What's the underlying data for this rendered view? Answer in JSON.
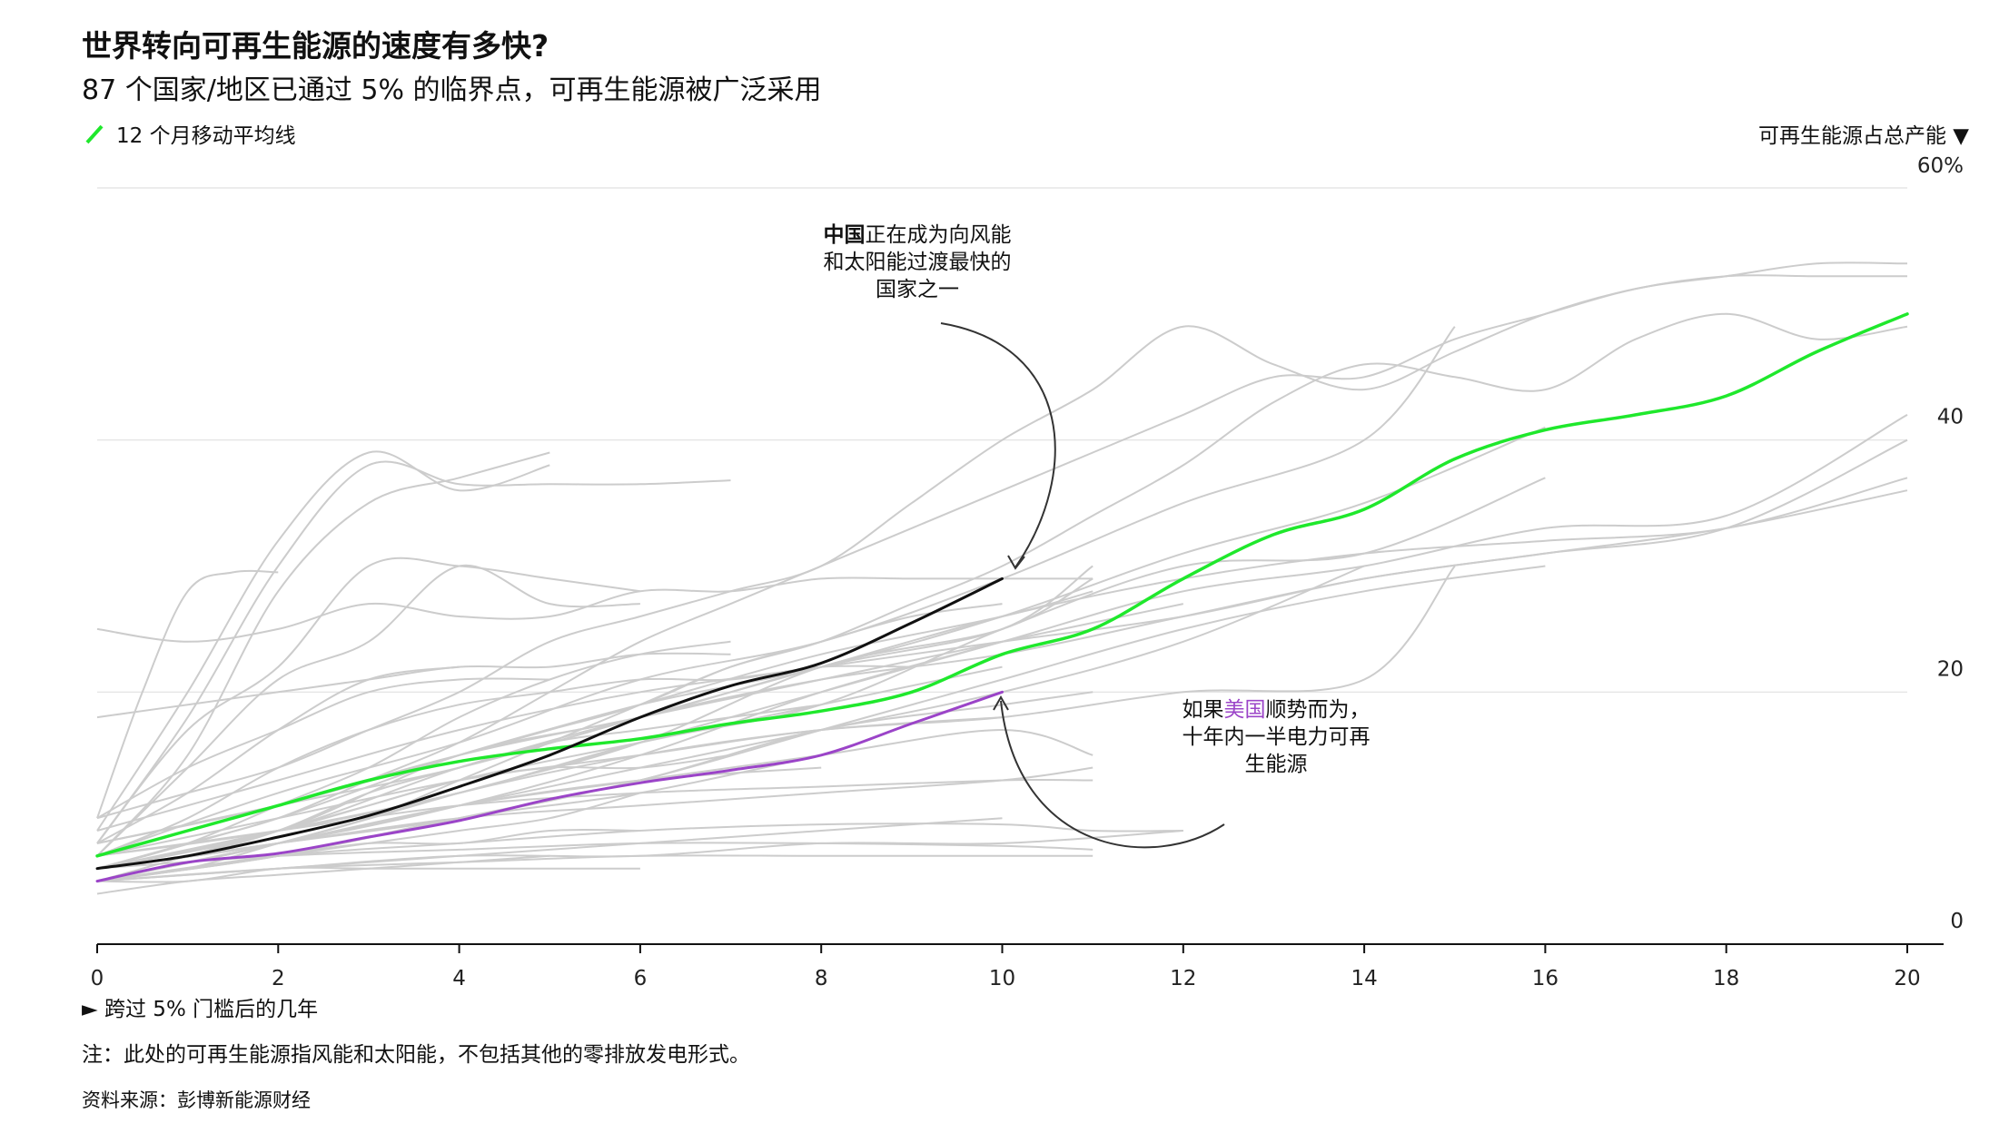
{
  "header": {
    "title": "世界转向可再生能源的速度有多快?",
    "subtitle": "87 个国家/地区已通过 5% 的临界点，可再生能源被广泛采用"
  },
  "legend": {
    "label": "12 个月移动平均线"
  },
  "footer": {
    "x_axis_label": "► 跨过 5% 门槛后的几年",
    "note": "注：此处的可再生能源指风能和太阳能，不包括其他的零排放发电形式。",
    "source": "资料来源：彭博新能源财经"
  },
  "annotations": {
    "china": {
      "bold": "中国",
      "line1_rest": "正在成为向风能",
      "line2": "和太阳能过渡最快的",
      "line3": "国家之一"
    },
    "us": {
      "line1_pre": "如果",
      "line1_hl": "美国",
      "line1_post": "顺势而为，",
      "line2": "十年内一半电力可再",
      "line3": "生能源"
    }
  },
  "colors": {
    "green": "#1fe82c",
    "purple": "#9b44c8",
    "black": "#111111",
    "gray": "#cccccc",
    "grid": "#e6e6e6"
  },
  "chart_data": {
    "type": "line",
    "title": "世界转向可再生能源的速度有多快?",
    "xlabel": "跨过 5% 门槛后的几年",
    "ylabel": "可再生能源占总产能",
    "xlim": [
      0,
      20
    ],
    "ylim": [
      0,
      60
    ],
    "x_ticks": [
      "0",
      "2",
      "4",
      "6",
      "8",
      "10",
      "12",
      "14",
      "16",
      "18",
      "20"
    ],
    "y_ticks": [
      "0",
      "20",
      "40",
      "60%"
    ],
    "y_tick_values": [
      0,
      20,
      40,
      60
    ],
    "highlight_series": [
      {
        "name": "12 个月移动平均线",
        "color": "#1fe82c",
        "x": [
          0,
          1,
          2,
          3,
          4,
          5,
          6,
          7,
          8,
          9,
          10,
          11,
          12,
          13,
          14,
          15,
          16,
          17,
          18,
          19,
          20
        ],
        "y": [
          7,
          9,
          11,
          13,
          14.5,
          15.5,
          16.3,
          17.5,
          18.5,
          20,
          23,
          25,
          29,
          32.5,
          34.5,
          38.5,
          40.8,
          42,
          43.5,
          47,
          50
        ]
      },
      {
        "name": "中国",
        "color": "#111111",
        "x": [
          0,
          1,
          2,
          3,
          4,
          5,
          6,
          7,
          8,
          9,
          10
        ],
        "y": [
          6,
          7,
          8.5,
          10.2,
          12.5,
          15,
          18,
          20.5,
          22.3,
          25.5,
          29
        ]
      },
      {
        "name": "美国",
        "color": "#9b44c8",
        "x": [
          0,
          1,
          2,
          3,
          4,
          5,
          6,
          7,
          8,
          9,
          10
        ],
        "y": [
          5,
          6.5,
          7.2,
          8.5,
          9.8,
          11.5,
          12.8,
          13.8,
          15,
          17.5,
          20
        ]
      }
    ],
    "background_series": [
      {
        "x": [
          0,
          1,
          2,
          3,
          4,
          5
        ],
        "y": [
          9,
          20,
          32,
          39,
          36,
          38
        ]
      },
      {
        "x": [
          0,
          1,
          2,
          3,
          4,
          5,
          6,
          7
        ],
        "y": [
          8,
          18,
          30,
          38,
          36.5,
          36.5,
          36.5,
          36.8
        ]
      },
      {
        "x": [
          0,
          1,
          2,
          3,
          4,
          5
        ],
        "y": [
          7,
          15,
          28,
          35,
          37,
          39
        ]
      },
      {
        "x": [
          0,
          0.5,
          1,
          1.5,
          2
        ],
        "y": [
          10,
          20,
          28,
          29.5,
          29.5
        ]
      },
      {
        "x": [
          0,
          1,
          2,
          3,
          4,
          5,
          6
        ],
        "y": [
          8,
          17,
          22,
          30,
          30,
          29,
          28
        ]
      },
      {
        "x": [
          0,
          1,
          2,
          3,
          4,
          5,
          6
        ],
        "y": [
          7,
          14,
          21,
          24,
          30,
          27,
          27
        ]
      },
      {
        "x": [
          0,
          1,
          2,
          3,
          4,
          5,
          6,
          7,
          8,
          9,
          10,
          11,
          12,
          13,
          14,
          15,
          16,
          17,
          18,
          19,
          20
        ],
        "y": [
          10,
          12,
          14,
          17,
          20,
          24,
          26,
          28,
          30,
          35,
          40,
          44,
          49,
          46,
          44,
          47,
          50,
          52,
          53,
          53,
          53
        ]
      },
      {
        "x": [
          0,
          1,
          2,
          3,
          4,
          5,
          6,
          7,
          8,
          9,
          10,
          11,
          12,
          13,
          14,
          15,
          16,
          17,
          18,
          19,
          20
        ],
        "y": [
          6,
          8,
          10,
          13,
          16,
          20,
          24,
          27,
          30,
          33,
          36,
          39,
          42,
          45,
          45,
          48,
          50,
          52,
          53,
          54,
          54
        ]
      },
      {
        "x": [
          0,
          1,
          2,
          3,
          4,
          5,
          6,
          7,
          8,
          9,
          10,
          11,
          12,
          13,
          14,
          15,
          16,
          17,
          18,
          19,
          20
        ],
        "y": [
          7,
          9,
          11,
          13,
          15,
          17,
          19,
          22,
          24,
          27,
          30,
          34,
          38,
          43,
          46,
          45,
          44,
          48,
          50,
          48,
          49
        ]
      },
      {
        "x": [
          0,
          2,
          4,
          6,
          8,
          10,
          12,
          14,
          15
        ],
        "y": [
          7,
          12,
          16,
          21,
          24,
          29,
          35,
          40,
          49
        ]
      },
      {
        "x": [
          0,
          2,
          4,
          6,
          8,
          10,
          12,
          14,
          16
        ],
        "y": [
          8,
          11,
          15,
          19,
          22,
          26,
          31,
          35,
          41
        ]
      },
      {
        "x": [
          0,
          2,
          4,
          6,
          8,
          10,
          12,
          14,
          16,
          18,
          20
        ],
        "y": [
          7,
          9,
          12,
          16,
          20,
          24,
          28,
          30,
          33,
          34,
          42
        ]
      },
      {
        "x": [
          0,
          2,
          4,
          6,
          8,
          10,
          12,
          14,
          16
        ],
        "y": [
          6,
          9,
          12,
          16,
          19,
          25,
          30,
          31,
          37
        ]
      },
      {
        "x": [
          0,
          2,
          4,
          6,
          8,
          10,
          12,
          14
        ],
        "y": [
          6,
          8,
          11,
          14,
          17,
          20,
          24,
          30
        ]
      },
      {
        "x": [
          0,
          2,
          4,
          6,
          8,
          10,
          12,
          14,
          16
        ],
        "y": [
          6,
          8,
          10,
          13,
          17,
          21,
          25,
          28,
          30
        ]
      },
      {
        "x": [
          0,
          1,
          2,
          3,
          4,
          5,
          6,
          7,
          8,
          9,
          10,
          11
        ],
        "y": [
          25,
          24,
          25,
          27,
          26,
          26,
          28,
          28,
          29,
          29,
          29,
          29
        ]
      },
      {
        "x": [
          0,
          2,
          4,
          6,
          8,
          10,
          12,
          14,
          16,
          18,
          20
        ],
        "y": [
          8,
          11,
          14,
          18,
          22,
          26,
          29,
          31,
          32,
          33,
          37
        ]
      },
      {
        "x": [
          0,
          2,
          4,
          6,
          8,
          10,
          12,
          14,
          16,
          18,
          20
        ],
        "y": [
          9,
          13,
          17,
          20,
          22,
          24,
          26,
          29,
          31,
          33,
          36
        ]
      },
      {
        "x": [
          0,
          2,
          4,
          6,
          8,
          10,
          12,
          14,
          15
        ],
        "y": [
          7,
          10,
          13,
          15,
          17,
          18,
          20,
          21,
          30
        ]
      },
      {
        "x": [
          0,
          2,
          4,
          6,
          8,
          10,
          12,
          14,
          16,
          18,
          20
        ],
        "y": [
          6,
          9,
          14,
          18,
          21,
          23,
          26,
          29,
          31,
          33,
          40
        ]
      },
      {
        "x": [
          0,
          2,
          4,
          6,
          8,
          10,
          11
        ],
        "y": [
          6,
          9,
          15,
          18,
          22,
          25,
          30
        ]
      },
      {
        "x": [
          0,
          2,
          4,
          6,
          8,
          10,
          11
        ],
        "y": [
          5,
          8,
          12,
          16,
          22,
          25,
          29
        ]
      },
      {
        "x": [
          0,
          2,
          4,
          6,
          8,
          10
        ],
        "y": [
          6,
          9,
          13,
          16,
          19,
          22
        ]
      },
      {
        "x": [
          0,
          2,
          4,
          6,
          8,
          10,
          11
        ],
        "y": [
          5,
          7,
          10,
          13,
          17,
          19,
          20
        ]
      },
      {
        "x": [
          0,
          2,
          4,
          6,
          8,
          10,
          11
        ],
        "y": [
          5,
          8,
          11,
          13,
          15,
          17,
          15
        ]
      },
      {
        "x": [
          0,
          2,
          4,
          6,
          8,
          10,
          11
        ],
        "y": [
          6,
          8,
          10,
          11,
          12,
          13,
          14
        ]
      },
      {
        "x": [
          0,
          2,
          4,
          6,
          8,
          10,
          11
        ],
        "y": [
          7,
          9,
          11,
          12,
          12.5,
          13,
          13
        ]
      },
      {
        "x": [
          0,
          2,
          4,
          6,
          8,
          10,
          11,
          12
        ],
        "y": [
          5,
          7,
          8,
          9,
          9.5,
          9.5,
          9,
          9
        ]
      },
      {
        "x": [
          0,
          2,
          4,
          6,
          8,
          10,
          11
        ],
        "y": [
          6,
          7,
          7.5,
          8,
          8,
          7.8,
          7.5
        ]
      },
      {
        "x": [
          0,
          2,
          4,
          6,
          8,
          10,
          11
        ],
        "y": [
          5,
          6,
          6.5,
          7,
          7,
          7,
          7
        ]
      },
      {
        "x": [
          0,
          2,
          4,
          6,
          8,
          10,
          12
        ],
        "y": [
          5,
          6,
          7,
          7,
          8,
          8,
          9
        ]
      },
      {
        "x": [
          0,
          2,
          4,
          6,
          8
        ],
        "y": [
          6,
          8,
          11,
          13,
          14
        ]
      },
      {
        "x": [
          0,
          2,
          4,
          6,
          8,
          10
        ],
        "y": [
          5,
          8,
          12,
          15,
          17,
          18
        ]
      },
      {
        "x": [
          0,
          2,
          4,
          6,
          8,
          10,
          12
        ],
        "y": [
          7,
          11,
          15,
          18,
          21,
          24,
          27
        ]
      },
      {
        "x": [
          0,
          2,
          4,
          6,
          8,
          10
        ],
        "y": [
          5,
          6,
          7,
          8,
          9,
          10
        ]
      },
      {
        "x": [
          0,
          2,
          4,
          6,
          8,
          10,
          11
        ],
        "y": [
          6,
          10,
          15,
          19,
          23,
          26,
          28
        ]
      },
      {
        "x": [
          0,
          2,
          4,
          6,
          8
        ],
        "y": [
          5,
          7,
          10,
          12,
          15
        ]
      },
      {
        "x": [
          0,
          2,
          4,
          6,
          8,
          10
        ],
        "y": [
          6,
          8,
          11,
          15,
          20,
          24
        ]
      },
      {
        "x": [
          0,
          1,
          2,
          3,
          4,
          5,
          6
        ],
        "y": [
          5,
          6,
          7,
          8,
          8,
          9,
          9
        ]
      },
      {
        "x": [
          0,
          1,
          2,
          3,
          4,
          5,
          6
        ],
        "y": [
          5,
          6,
          7,
          8,
          9,
          10,
          12
        ]
      },
      {
        "x": [
          0,
          1,
          2,
          3,
          4,
          5,
          6,
          7
        ],
        "y": [
          6,
          8,
          11,
          14,
          18,
          21,
          23,
          24
        ]
      },
      {
        "x": [
          0,
          1,
          2,
          3,
          4,
          5,
          6,
          7
        ],
        "y": [
          5,
          7,
          9,
          11,
          13,
          14,
          14,
          15
        ]
      },
      {
        "x": [
          0,
          1,
          2,
          3,
          4,
          5
        ],
        "y": [
          4,
          5,
          5.5,
          6,
          6.5,
          7
        ]
      },
      {
        "x": [
          0,
          1,
          2,
          3,
          4,
          5,
          6
        ],
        "y": [
          5,
          5,
          6,
          6,
          6,
          6,
          6
        ]
      },
      {
        "x": [
          0,
          1,
          2,
          3,
          4,
          5,
          6,
          7,
          8
        ],
        "y": [
          6,
          7,
          9,
          12,
          14,
          16,
          17,
          18,
          19
        ]
      },
      {
        "x": [
          0,
          1,
          2,
          3,
          4,
          5,
          6,
          7,
          8,
          9,
          10
        ],
        "y": [
          5,
          6,
          8,
          10,
          13,
          16,
          19,
          22,
          24,
          26,
          27
        ]
      },
      {
        "x": [
          0,
          1,
          2,
          3,
          4,
          5,
          6,
          7,
          8,
          9
        ],
        "y": [
          7,
          10,
          14,
          17,
          19,
          20,
          21,
          21,
          22,
          22
        ]
      },
      {
        "x": [
          0,
          1,
          2,
          3,
          4
        ],
        "y": [
          8,
          12,
          17,
          21,
          22
        ]
      },
      {
        "x": [
          0,
          1,
          2,
          3,
          4,
          5
        ],
        "y": [
          10,
          14,
          17,
          20,
          21,
          21
        ]
      },
      {
        "x": [
          0,
          1,
          2,
          3,
          4,
          5,
          6,
          7
        ],
        "y": [
          18,
          19,
          20,
          21,
          22,
          22,
          23,
          23
        ]
      }
    ]
  }
}
